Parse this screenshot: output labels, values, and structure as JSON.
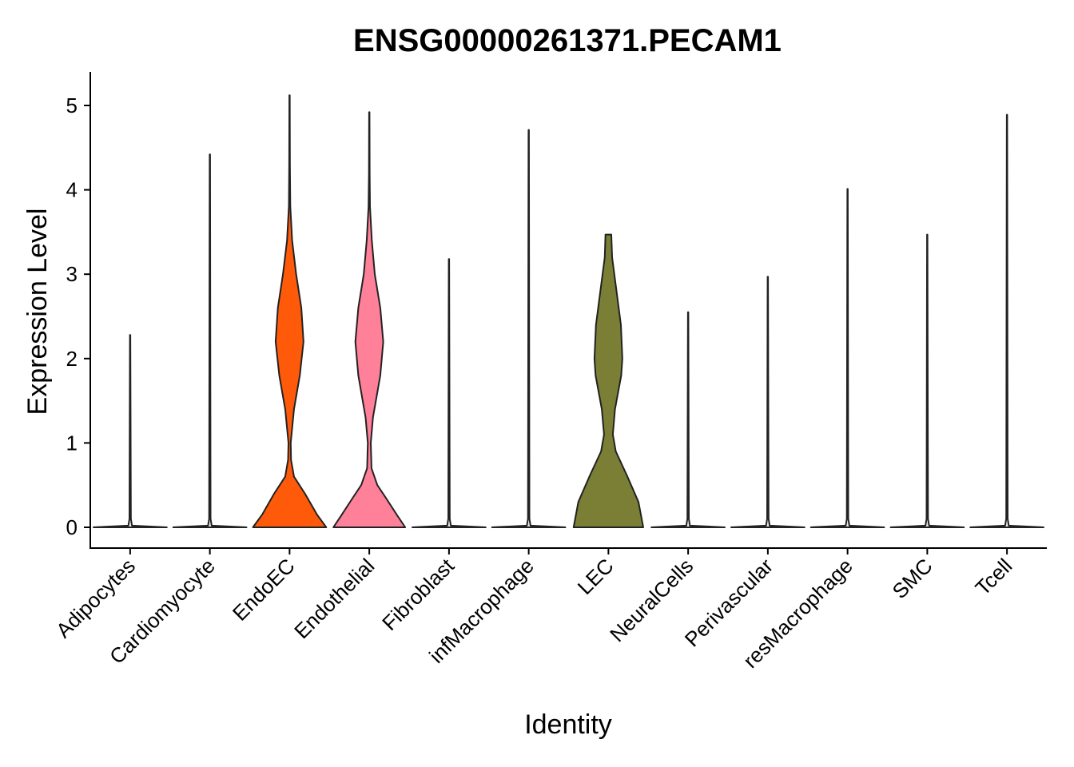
{
  "chart_data": {
    "type": "violin",
    "title": "ENSG00000261371.PECAM1",
    "xlabel": "Identity",
    "ylabel": "Expression Level",
    "ylim": [
      -0.25,
      5.4
    ],
    "yticks": [
      0,
      1,
      2,
      3,
      4,
      5
    ],
    "grid": false,
    "legend": "none",
    "categories": [
      "Adipocytes",
      "Cardiomyocyte",
      "EndoEC",
      "Endothelial",
      "Fibroblast",
      "infMacrophage",
      "LEC",
      "NeuralCells",
      "Perivascular",
      "resMacrophage",
      "SMC",
      "Tcell"
    ],
    "series": [
      {
        "category": "Adipocytes",
        "max": 2.28,
        "color": "#E8E8E8",
        "density": [
          [
            0,
            1
          ],
          [
            0.02,
            0.05
          ],
          [
            0.1,
            0.02
          ],
          [
            2.28,
            0.005
          ]
        ]
      },
      {
        "category": "Cardiomyocyte",
        "max": 4.42,
        "color": "#E8E8E8",
        "density": [
          [
            0,
            1
          ],
          [
            0.02,
            0.05
          ],
          [
            0.1,
            0.02
          ],
          [
            4.42,
            0.005
          ]
        ]
      },
      {
        "category": "EndoEC",
        "max": 5.12,
        "color": "#FF5A0A",
        "density": [
          [
            0,
            1
          ],
          [
            0.15,
            0.75
          ],
          [
            0.4,
            0.42
          ],
          [
            0.6,
            0.12
          ],
          [
            0.8,
            0.04
          ],
          [
            1.0,
            0.03
          ],
          [
            1.4,
            0.12
          ],
          [
            1.8,
            0.28
          ],
          [
            2.2,
            0.38
          ],
          [
            2.6,
            0.32
          ],
          [
            3.0,
            0.18
          ],
          [
            3.4,
            0.07
          ],
          [
            3.8,
            0.02
          ],
          [
            4.3,
            0.01
          ],
          [
            5.12,
            0.005
          ]
        ]
      },
      {
        "category": "Endothelial",
        "max": 4.92,
        "color": "#FF8099",
        "density": [
          [
            0,
            0.98
          ],
          [
            0.15,
            0.75
          ],
          [
            0.35,
            0.45
          ],
          [
            0.5,
            0.22
          ],
          [
            0.7,
            0.06
          ],
          [
            1.0,
            0.04
          ],
          [
            1.3,
            0.1
          ],
          [
            1.8,
            0.3
          ],
          [
            2.2,
            0.38
          ],
          [
            2.6,
            0.3
          ],
          [
            3.0,
            0.15
          ],
          [
            3.4,
            0.07
          ],
          [
            3.8,
            0.02
          ],
          [
            4.2,
            0.01
          ],
          [
            4.92,
            0.005
          ]
        ]
      },
      {
        "category": "Fibroblast",
        "max": 3.18,
        "color": "#E8E8E8",
        "density": [
          [
            0,
            1
          ],
          [
            0.02,
            0.05
          ],
          [
            0.1,
            0.02
          ],
          [
            3.18,
            0.005
          ]
        ]
      },
      {
        "category": "infMacrophage",
        "max": 4.71,
        "color": "#E8E8E8",
        "density": [
          [
            0,
            1
          ],
          [
            0.02,
            0.05
          ],
          [
            0.1,
            0.02
          ],
          [
            4.71,
            0.005
          ]
        ]
      },
      {
        "category": "LEC",
        "max": 3.47,
        "color": "#7A7F35",
        "density": [
          [
            0,
            0.95
          ],
          [
            0.3,
            0.82
          ],
          [
            0.6,
            0.52
          ],
          [
            0.9,
            0.2
          ],
          [
            1.1,
            0.12
          ],
          [
            1.4,
            0.18
          ],
          [
            1.8,
            0.35
          ],
          [
            2.0,
            0.38
          ],
          [
            2.4,
            0.34
          ],
          [
            2.8,
            0.22
          ],
          [
            3.2,
            0.1
          ],
          [
            3.47,
            0.08
          ]
        ]
      },
      {
        "category": "NeuralCells",
        "max": 2.55,
        "color": "#E8E8E8",
        "density": [
          [
            0,
            1
          ],
          [
            0.02,
            0.05
          ],
          [
            0.1,
            0.02
          ],
          [
            2.55,
            0.005
          ]
        ]
      },
      {
        "category": "Perivascular",
        "max": 2.97,
        "color": "#E8E8E8",
        "density": [
          [
            0,
            1
          ],
          [
            0.02,
            0.05
          ],
          [
            0.1,
            0.02
          ],
          [
            2.97,
            0.005
          ]
        ]
      },
      {
        "category": "resMacrophage",
        "max": 4.01,
        "color": "#E8E8E8",
        "density": [
          [
            0,
            1
          ],
          [
            0.02,
            0.05
          ],
          [
            0.1,
            0.02
          ],
          [
            4.01,
            0.005
          ]
        ]
      },
      {
        "category": "SMC",
        "max": 3.47,
        "color": "#E8E8E8",
        "density": [
          [
            0,
            1
          ],
          [
            0.02,
            0.05
          ],
          [
            0.1,
            0.02
          ],
          [
            3.47,
            0.005
          ]
        ]
      },
      {
        "category": "Tcell",
        "max": 4.89,
        "color": "#E8E8E8",
        "density": [
          [
            0,
            1
          ],
          [
            0.02,
            0.05
          ],
          [
            0.1,
            0.02
          ],
          [
            4.89,
            0.005
          ]
        ]
      }
    ]
  }
}
